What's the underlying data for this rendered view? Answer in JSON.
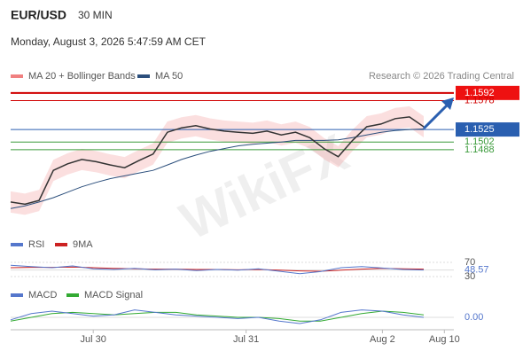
{
  "header": {
    "symbol": "EUR/USD",
    "interval": "30 MIN",
    "datetime": "Monday, August 3, 2026 5:47:59 AM CET"
  },
  "legend": {
    "bands": "MA 20 + Bollinger Bands",
    "ma50": "MA 50",
    "credit": "Research © 2026 Trading Central",
    "bands_color": "#f08080",
    "ma50_color": "#2c4f7c"
  },
  "watermark": "WikiFX",
  "price": {
    "ylim": [
      1.1348,
      1.1608
    ],
    "levels": [
      {
        "value": 1.1592,
        "color": "#d00000",
        "box": true
      },
      {
        "value": 1.1578,
        "color": "#d00000",
        "box": false
      },
      {
        "value": 1.1525,
        "color": "#2a5fb0",
        "box": true
      },
      {
        "value": 1.1502,
        "color": "#3a9a3a",
        "box": false
      },
      {
        "value": 1.1488,
        "color": "#3a9a3a",
        "box": false
      }
    ],
    "values": [
      1.1392,
      1.1388,
      1.1395,
      1.145,
      1.1462,
      1.147,
      1.1466,
      1.146,
      1.1455,
      1.1468,
      1.148,
      1.152,
      1.1528,
      1.1532,
      1.1526,
      1.1522,
      1.152,
      1.1518,
      1.1522,
      1.1515,
      1.152,
      1.151,
      1.149,
      1.1475,
      1.1505,
      1.153,
      1.1535,
      1.1545,
      1.1548,
      1.153
    ],
    "ma50": [
      1.138,
      1.1385,
      1.1392,
      1.14,
      1.141,
      1.142,
      1.1428,
      1.1435,
      1.144,
      1.1445,
      1.145,
      1.146,
      1.147,
      1.1478,
      1.1485,
      1.149,
      1.1495,
      1.1498,
      1.15,
      1.1502,
      1.1505,
      1.1505,
      1.1505,
      1.1506,
      1.151,
      1.1515,
      1.152,
      1.1523,
      1.1525,
      1.1526
    ]
  },
  "rsi": {
    "name": "RSI",
    "ma_name": "9MA",
    "color": "#5577cc",
    "ma_color": "#cc2222",
    "ylim": [
      15,
      90
    ],
    "ticks": [
      70,
      {
        "value": 48.57,
        "label": "48.57"
      },
      30
    ],
    "values": [
      62,
      58,
      55,
      60,
      52,
      50,
      53,
      49,
      51,
      47,
      50,
      48,
      52,
      45,
      38,
      44,
      55,
      58,
      54,
      50,
      48.57
    ],
    "ma": [
      55,
      56,
      56,
      57,
      55,
      53,
      52,
      51,
      51,
      50,
      50,
      49,
      50,
      48,
      46,
      45,
      48,
      51,
      53,
      52,
      51
    ]
  },
  "macd": {
    "name": "MACD",
    "signal_name": "MACD Signal",
    "color": "#5577cc",
    "signal_color": "#33aa33",
    "ylim": [
      -0.001,
      0.001
    ],
    "ticks": [
      {
        "value": 0,
        "label": "0.00"
      }
    ],
    "values": [
      -0.0002,
      0.0003,
      0.0005,
      0.0003,
      0.0001,
      0.0002,
      0.0006,
      0.0004,
      0.0002,
      0.0001,
      0,
      -0.0001,
      0,
      -0.0003,
      -0.0005,
      -0.0002,
      0.0004,
      0.0006,
      0.0005,
      0.0002,
      0
    ],
    "signal": [
      -0.0003,
      0,
      0.0003,
      0.0004,
      0.0003,
      0.0002,
      0.0003,
      0.0004,
      0.0004,
      0.0002,
      0.0001,
      0,
      0,
      -0.0001,
      -0.0003,
      -0.0003,
      0,
      0.0003,
      0.0005,
      0.0004,
      0.0002
    ]
  },
  "x_axis": {
    "labels": [
      {
        "label": "Jul 30",
        "pos": 0.2
      },
      {
        "label": "Jul 31",
        "pos": 0.57
      },
      {
        "label": "Aug 2",
        "pos": 0.9
      },
      {
        "label": "Aug 10",
        "pos": 1.05
      }
    ]
  }
}
